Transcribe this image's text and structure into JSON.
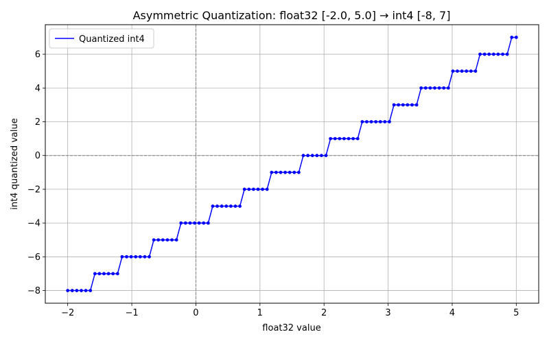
{
  "chart_data": {
    "type": "line",
    "title": "Asymmetric Quantization: float32 [-2.0, 5.0] → int4 [-8, 7]",
    "xlabel": "float32 value",
    "ylabel": "int4 quantized value",
    "xlim": [
      -2.35,
      5.35
    ],
    "ylim": [
      -8.75,
      7.75
    ],
    "xticks": [
      -2,
      -1,
      0,
      1,
      2,
      3,
      4,
      5
    ],
    "yticks": [
      -8,
      -6,
      -4,
      -2,
      0,
      2,
      4,
      6
    ],
    "xtick_labels": [
      "−2",
      "−1",
      "0",
      "1",
      "2",
      "3",
      "4",
      "5"
    ],
    "ytick_labels": [
      "−8",
      "−6",
      "−4",
      "−2",
      "0",
      "2",
      "4",
      "6"
    ],
    "grid": true,
    "reference_lines": [
      {
        "axis": "y",
        "value": 0,
        "style": "dashed",
        "color": "#808080"
      },
      {
        "axis": "x",
        "value": 0,
        "style": "dashed",
        "color": "#808080"
      }
    ],
    "legend": {
      "placement": "top-left",
      "entries": [
        "Quantized int4"
      ]
    },
    "series": [
      {
        "name": "Quantized int4",
        "color": "#0000ff",
        "marker": "circle",
        "quantization": {
          "x_min": -2.0,
          "x_max": 5.0,
          "q_min": -8,
          "q_max": 7,
          "num_points": 100
        }
      }
    ]
  }
}
